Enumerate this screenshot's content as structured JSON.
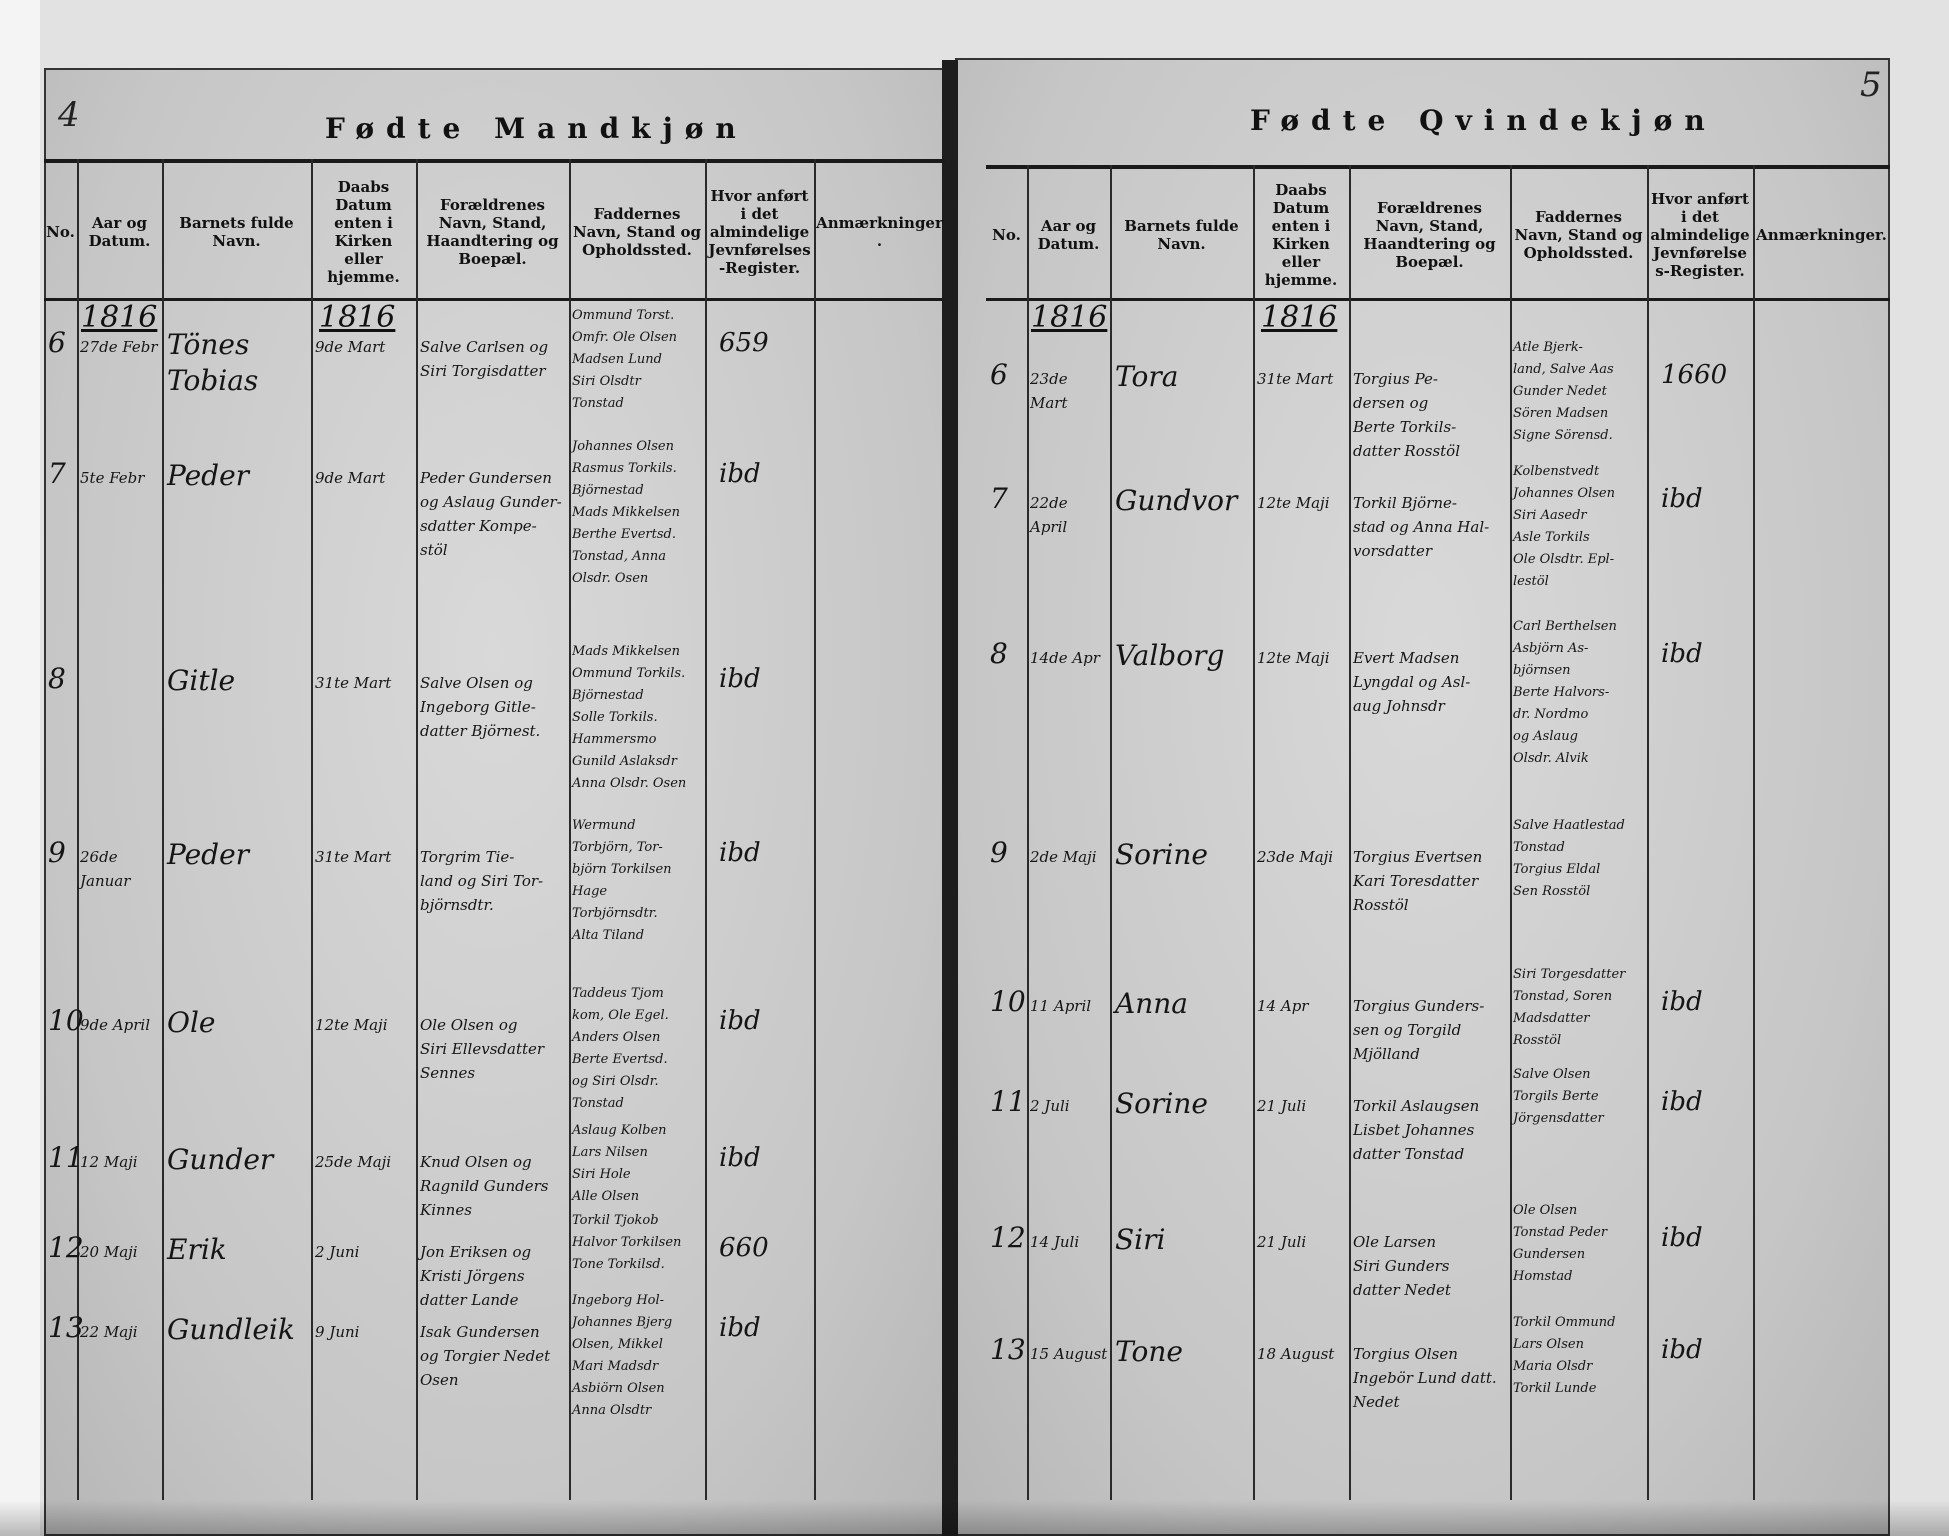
{
  "left_page": {
    "page_number": "4",
    "title": "Fødte Mandkjøn",
    "headers": [
      "No.",
      "Aar og Datum.",
      "Barnets fulde Navn.",
      "Daabs Datum enten i Kirken eller hjemme.",
      "Forældrenes Navn, Stand, Haandtering og Boepæl.",
      "Faddernes Navn, Stand og Opholdssted.",
      "Hvor anført i det almindelige Jevnførelses-Register.",
      "Anmærkninger."
    ],
    "year_birth": "1816",
    "year_baptism": "1816",
    "entries": [
      {
        "no": "6",
        "date": "27de Febr",
        "name": "Tönes Tobias",
        "baptism": "9de Mart",
        "parents": "Salve Carlsen og\nSiri Torgisdatter",
        "sponsors": "Ommund Torst.\nOmfr. Ole Olsen\nMadsen Lund\nSiri Olsdtr\nTonstad",
        "ref": "659"
      },
      {
        "no": "7",
        "date": "5te Febr",
        "name": "Peder",
        "baptism": "9de Mart",
        "parents": "Peder Gundersen\nog Aslaug Gunder-\nsdatter Kompe-\nstöl",
        "sponsors": "Johannes Olsen\nRasmus Torkils.\nBjörnestad\nMads Mikkelsen\nBerthe Evertsd.\nTonstad, Anna\nOlsdr. Osen",
        "ref": "ibd"
      },
      {
        "no": "8",
        "date": "",
        "name": "Gitle",
        "baptism": "31te Mart",
        "parents": "Salve Olsen og\nIngeborg Gitle-\ndatter Björnest.",
        "sponsors": "Mads Mikkelsen\nOmmund Torkils.\nBjörnestad\nSolle Torkils.\nHammersmo\nGunild Aslaksdr\nAnna Olsdr. Osen",
        "ref": "ibd"
      },
      {
        "no": "9",
        "date": "26de Januar",
        "name": "Peder",
        "baptism": "31te Mart",
        "parents": "Torgrim Tie-\nland og Siri Tor-\nbjörnsdtr.",
        "sponsors": "Wermund\nTorbjörn, Tor-\nbjörn Torkilsen\nHage\nTorbjörnsdtr.\nAlta Tiland",
        "ref": "ibd"
      },
      {
        "no": "10",
        "date": "9de April",
        "name": "Ole",
        "baptism": "12te Maji",
        "parents": "Ole Olsen og\nSiri Ellevsdatter\nSennes",
        "sponsors": "Taddeus Tjom\nkom, Ole Egel.\nAnders Olsen\nBerte Evertsd.\nog Siri Olsdr.\nTonstad",
        "ref": "ibd"
      },
      {
        "no": "11",
        "date": "12 Maji",
        "name": "Gunder",
        "baptism": "25de Maji",
        "parents": "Knud Olsen og\nRagnild Gunders\nKinnes",
        "sponsors": "Aslaug Kolben\nLars Nilsen\nSiri Hole\nAlle Olsen",
        "ref": "ibd"
      },
      {
        "no": "12",
        "date": "20 Maji",
        "name": "Erik",
        "baptism": "2 Juni",
        "parents": "Jon Eriksen og\nKristi Jörgens\ndatter Lande",
        "sponsors": "Torkil Tjokob\nHalvor Torkilsen\nTone Torkilsd.",
        "ref": "660"
      },
      {
        "no": "13",
        "date": "22 Maji",
        "name": "Gundleik",
        "baptism": "9 Juni",
        "parents": "Isak Gundersen\nog Torgier Nedet\nOsen",
        "sponsors": "Ingeborg Hol-\nJohannes Bjerg\nOlsen, Mikkel\nMari Madsdr\nAsbiörn Olsen\nAnna Olsdtr",
        "ref": "ibd"
      }
    ]
  },
  "right_page": {
    "page_number": "5",
    "title": "Fødte Qvindekjøn",
    "headers": [
      "No.",
      "Aar og Datum.",
      "Barnets fulde Navn.",
      "Daabs Datum enten i Kirken eller hjemme.",
      "Forældrenes Navn, Stand, Haandtering og Boepæl.",
      "Faddernes Navn, Stand og Opholdssted.",
      "Hvor anført i det almindelige Jevnførelses-Register.",
      "Anmærkninger."
    ],
    "year_birth": "1816",
    "year_baptism": "1816",
    "entries": [
      {
        "no": "6",
        "date": "23de Mart",
        "name": "Tora",
        "baptism": "31te Mart",
        "parents": "Torgius Pe-\ndersen og\nBerte Torkils-\ndatter Rosstöl",
        "sponsors": "Atle Bjerk-\nland, Salve Aas\nGunder Nedet\nSören Madsen\nSigne Sörensd.",
        "ref": "1660"
      },
      {
        "no": "7",
        "date": "22de April",
        "name": "Gundvor",
        "baptism": "12te Maji",
        "parents": "Torkil Björne-\nstad og Anna Hal-\nvorsdatter",
        "sponsors": "Kolbenstvedt\nJohannes Olsen\nSiri Aasedr\nAsle Torkils\nOle Olsdtr. Epl-\nlestöl",
        "ref": "ibd"
      },
      {
        "no": "8",
        "date": "14de Apr",
        "name": "Valborg",
        "baptism": "12te Maji",
        "parents": "Evert Madsen\nLyngdal og Asl-\naug Johnsdr",
        "sponsors": "Carl Berthelsen\nAsbjörn As-\nbjörnsen\nBerte Halvors-\ndr. Nordmo\nog Aslaug\nOlsdr. Alvik",
        "ref": "ibd"
      },
      {
        "no": "9",
        "date": "2de Maji",
        "name": "Sorine",
        "baptism": "23de Maji",
        "parents": "Torgius Evertsen\nKari Toresdatter\nRosstöl",
        "sponsors": "Salve Haatlestad\nTonstad\nTorgius Eldal\nSen Rosstöl",
        "ref": ""
      },
      {
        "no": "10",
        "date": "11 April",
        "name": "Anna",
        "baptism": "14 Apr",
        "parents": "Torgius Gunders-\nsen og Torgild\nMjölland",
        "sponsors": "Siri Torgesdatter\nTonstad, Soren\nMadsdatter\nRosstöl",
        "ref": "ibd"
      },
      {
        "no": "11",
        "date": "2 Juli",
        "name": "Sorine",
        "baptism": "21 Juli",
        "parents": "Torkil Aslaugsen\nLisbet Johannes\ndatter Tonstad",
        "sponsors": "Salve Olsen\nTorgils Berte\nJörgensdatter",
        "ref": "ibd"
      },
      {
        "no": "12",
        "date": "14 Juli",
        "name": "Siri",
        "baptism": "21 Juli",
        "parents": "Ole Larsen\nSiri Gunders\ndatter Nedet",
        "sponsors": "Ole Olsen\nTonstad Peder\nGundersen\nHomstad",
        "ref": "ibd"
      },
      {
        "no": "13",
        "date": "15 August",
        "name": "Tone",
        "baptism": "18 August",
        "parents": "Torgius Olsen\nIngebör Lund datt.\nNedet",
        "sponsors": "Torkil Ommund\nLars Olsen\nMaria Olsdr\nTorkil Lunde",
        "ref": "ibd"
      }
    ]
  }
}
